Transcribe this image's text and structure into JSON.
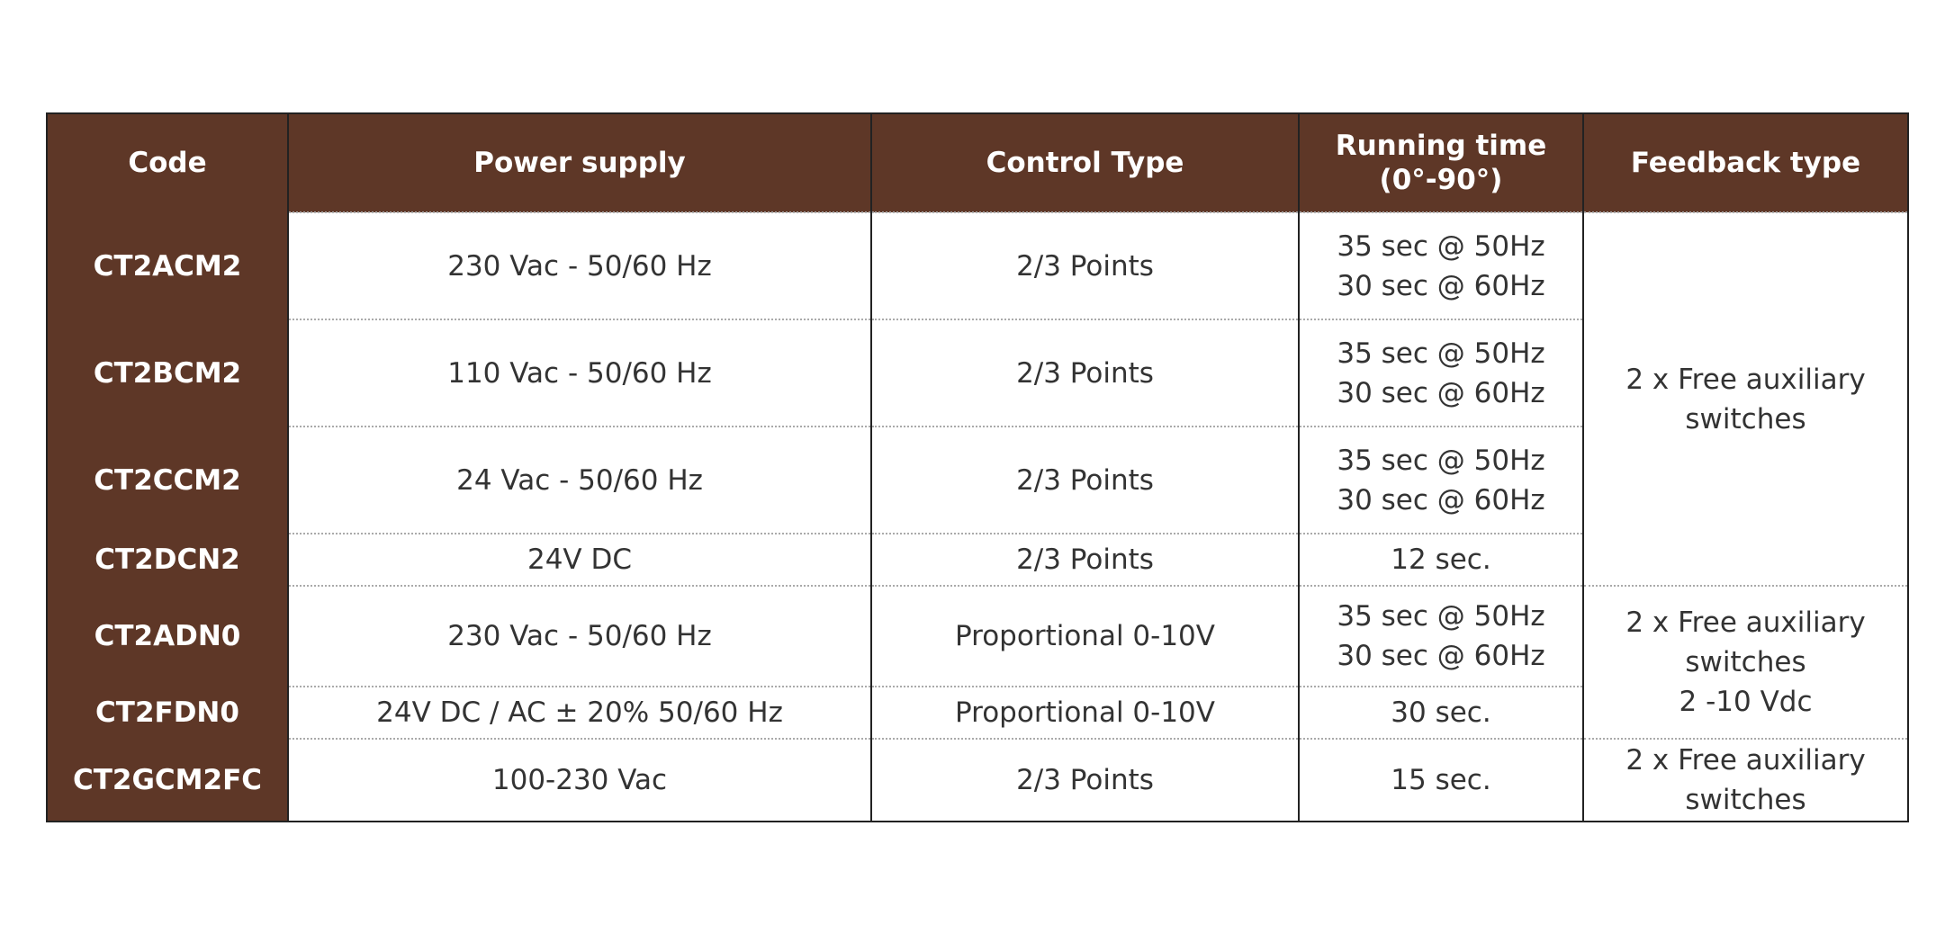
{
  "table": {
    "header": [
      "Code",
      "Power supply",
      "Control Type",
      "Running time (0°-90°)",
      "Feedback type"
    ],
    "rows": [
      {
        "code": "CT2ACM2",
        "power_supply": "230 Vac - 50/60 Hz",
        "control_type": "2/3 Points",
        "running_time": [
          "35 sec @ 50Hz",
          "30 sec @ 60Hz"
        ],
        "feedback_type": [
          "2 x Free auxiliary switches"
        ]
      },
      {
        "code": "CT2BCM2",
        "power_supply": "110 Vac - 50/60 Hz",
        "control_type": "2/3 Points",
        "running_time": [
          "35 sec @ 50Hz",
          "30 sec @ 60Hz"
        ]
      },
      {
        "code": "CT2CCM2",
        "power_supply": "24 Vac - 50/60 Hz",
        "control_type": "2/3 Points",
        "running_time": [
          "35 sec @ 50Hz",
          "30 sec @ 60Hz"
        ]
      },
      {
        "code": "CT2DCN2",
        "power_supply": "24V DC",
        "control_type": "2/3 Points",
        "running_time": [
          "12 sec."
        ]
      },
      {
        "code": "CT2ADN0",
        "power_supply": "230 Vac - 50/60 Hz",
        "control_type": "Proportional 0-10V",
        "running_time": [
          "35 sec @ 50Hz",
          "30 sec @ 60Hz"
        ],
        "feedback_type": [
          "2 x Free auxiliary switches",
          "2 -10 Vdc"
        ]
      },
      {
        "code": "CT2FDN0",
        "power_supply": "24V DC / AC ± 20% 50/60 Hz",
        "control_type": "Proportional 0-10V",
        "running_time": [
          "30 sec."
        ]
      },
      {
        "code": "CT2GCM2FC",
        "power_supply": "100-230 Vac",
        "control_type": "2/3 Points",
        "running_time": [
          "15 sec."
        ],
        "feedback_type": [
          "2 x Free auxiliary switches"
        ]
      }
    ]
  }
}
